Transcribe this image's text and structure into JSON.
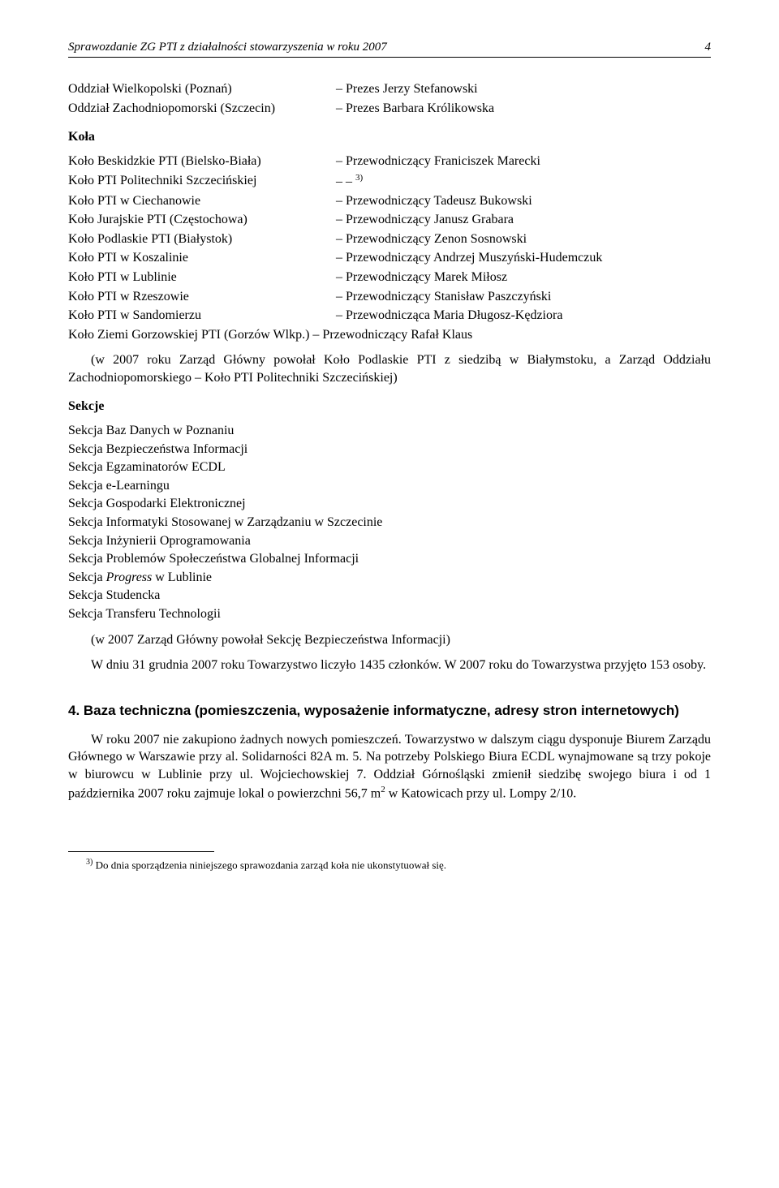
{
  "header": {
    "title": "Sprawozdanie ZG PTI z działalności stowarzyszenia w roku 2007",
    "page_number": "4"
  },
  "oddzialy": [
    {
      "name": "Oddział Wielkopolski (Poznań)",
      "leader": "– Prezes Jerzy Stefanowski"
    },
    {
      "name": "Oddział Zachodniopomorski (Szczecin)",
      "leader": "– Prezes Barbara Królikowska"
    }
  ],
  "kola_head": "Koła",
  "kola": [
    {
      "name": "Koło Beskidzkie PTI (Bielsko-Biała)",
      "leader": "– Przewodniczący Franiciszek Marecki"
    },
    {
      "name": "Koło PTI Politechniki Szczecińskiej",
      "leader": "– –",
      "sup": "3)"
    },
    {
      "name": "Koło PTI w Ciechanowie",
      "leader": "– Przewodniczący Tadeusz Bukowski"
    },
    {
      "name": "Koło Jurajskie PTI (Częstochowa)",
      "leader": "– Przewodniczący Janusz Grabara"
    },
    {
      "name": "Koło Podlaskie PTI (Białystok)",
      "leader": "– Przewodniczący Zenon Sosnowski"
    },
    {
      "name": "Koło PTI w Koszalinie",
      "leader": "– Przewodniczący Andrzej Muszyński-Hudemczuk"
    },
    {
      "name": "Koło PTI w Lublinie",
      "leader": "– Przewodniczący Marek Miłosz"
    },
    {
      "name": "Koło PTI w Rzeszowie",
      "leader": "– Przewodniczący Stanisław Paszczyński"
    },
    {
      "name": "Koło PTI w Sandomierzu",
      "leader": "– Przewodnicząca Maria Długosz-Kędziora"
    }
  ],
  "kola_extra": "Koło Ziemi Gorzowskiej PTI (Gorzów Wlkp.) – Przewodniczący Rafał Klaus",
  "para_after_kola": "(w 2007 roku Zarząd Główny powołał Koło Podlaskie PTI z siedzibą w Białymstoku, a Zarząd Oddziału Zachodniopomorskiego – Koło PTI Politechniki Szczecińskiej)",
  "sekcje_head": "Sekcje",
  "sekcje": [
    "Sekcja Baz Danych w Poznaniu",
    "Sekcja Bezpieczeństwa Informacji",
    "Sekcja Egzaminatorów ECDL",
    "Sekcja e-Learningu",
    "Sekcja Gospodarki Elektronicznej",
    "Sekcja Informatyki Stosowanej w Zarządzaniu w Szczecinie",
    "Sekcja Inżynierii Oprogramowania",
    "Sekcja Problemów Społeczeństwa Globalnej Informacji"
  ],
  "sekcje_italic": {
    "prefix": "Sekcja ",
    "em": "Progress",
    "suffix": " w Lublinie"
  },
  "sekcje2": [
    "Sekcja Studencka",
    "Sekcja Transferu Technologii"
  ],
  "para_after_sekcje": "(w 2007 Zarząd Główny powołał Sekcję Bezpieczeństwa Informacji)",
  "para_members": "W dniu 31 grudnia 2007 roku Towarzystwo liczyło 1435 członków. W 2007 roku do Towarzystwa przyjęto 153 osoby.",
  "section4_title": "4. Baza techniczna (pomieszczenia, wyposażenie informatyczne, adresy stron internetowych)",
  "para_section4_a": "W roku 2007 nie zakupiono żadnych nowych pomieszczeń. Towarzystwo w dalszym ciągu dysponuje Biurem Zarządu Głównego w Warszawie przy al. Solidarności 82A m. 5. Na potrzeby Polskiego Biura ECDL wynajmowane są trzy pokoje w biurowcu w Lublinie przy ul. Wojciechowskiej 7. Oddział Górnośląski zmienił siedzibę swojego biura i od 1 października 2007 roku zajmuje lokal o powierzchni 56,7 m",
  "para_section4_sup": "2",
  "para_section4_b": " w Katowicach przy ul. Lompy 2/10.",
  "footnote": {
    "sup": "3)",
    "text": " Do dnia sporządzenia niniejszego sprawozdania zarząd koła nie ukonstytuował się."
  }
}
